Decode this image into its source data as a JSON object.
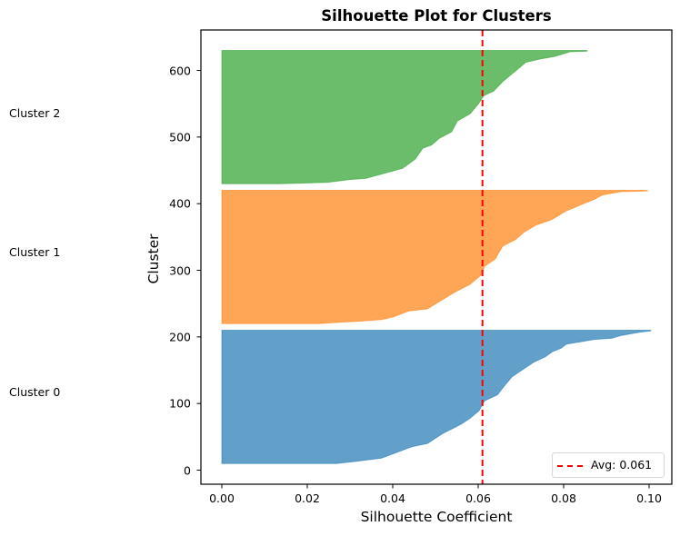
{
  "chart_data": {
    "type": "area",
    "subtype": "silhouette",
    "title": "Silhouette Plot for Clusters",
    "xlabel": "Silhouette Coefficient",
    "ylabel": "Cluster",
    "xlim": [
      -0.005,
      0.1055
    ],
    "ylim": [
      -21,
      660
    ],
    "x_ticks": [
      0.0,
      0.02,
      0.04,
      0.06,
      0.08,
      0.1
    ],
    "x_tick_labels": [
      "0.00",
      "0.02",
      "0.04",
      "0.06",
      "0.08",
      "0.10"
    ],
    "y_ticks": [
      0,
      100,
      200,
      300,
      400,
      500,
      600
    ],
    "y_tick_labels": [
      "0",
      "100",
      "200",
      "300",
      "400",
      "500",
      "600"
    ],
    "grid": false,
    "average_line": {
      "value": 0.061,
      "label": "Avg: 0.061",
      "color": "#ff0000",
      "style": "dashed"
    },
    "legend": {
      "position": "lower right",
      "entries": [
        "Avg: 0.061"
      ]
    },
    "series": [
      {
        "name": "Cluster 0",
        "color": "#1f77b4",
        "y_range": [
          10,
          210
        ],
        "profile": [
          [
            10,
            0.0
          ],
          [
            10,
            0.0268
          ],
          [
            13,
            0.0311
          ],
          [
            18,
            0.0374
          ],
          [
            27,
            0.0411
          ],
          [
            35,
            0.0445
          ],
          [
            40,
            0.0481
          ],
          [
            55,
            0.0517
          ],
          [
            69,
            0.056
          ],
          [
            78,
            0.0581
          ],
          [
            89,
            0.0602
          ],
          [
            104,
            0.0615
          ],
          [
            113,
            0.0645
          ],
          [
            123,
            0.0657
          ],
          [
            140,
            0.0679
          ],
          [
            153,
            0.0709
          ],
          [
            162,
            0.073
          ],
          [
            170,
            0.0757
          ],
          [
            178,
            0.0774
          ],
          [
            183,
            0.0794
          ],
          [
            189,
            0.0806
          ],
          [
            196,
            0.087
          ],
          [
            198,
            0.0913
          ],
          [
            202,
            0.0934
          ],
          [
            207,
            0.0977
          ],
          [
            209,
            0.1004
          ],
          [
            210,
            0.1004
          ]
        ]
      },
      {
        "name": "Cluster 1",
        "color": "#ff7f0e",
        "y_range": [
          220,
          420
        ],
        "profile": [
          [
            220,
            0.0
          ],
          [
            220,
            0.0226
          ],
          [
            224,
            0.0332
          ],
          [
            226,
            0.0374
          ],
          [
            230,
            0.0402
          ],
          [
            239,
            0.0438
          ],
          [
            242,
            0.0481
          ],
          [
            253,
            0.0509
          ],
          [
            267,
            0.0545
          ],
          [
            279,
            0.0581
          ],
          [
            294,
            0.0609
          ],
          [
            306,
            0.0615
          ],
          [
            317,
            0.064
          ],
          [
            336,
            0.0657
          ],
          [
            346,
            0.0687
          ],
          [
            358,
            0.0709
          ],
          [
            368,
            0.0736
          ],
          [
            376,
            0.0772
          ],
          [
            389,
            0.0806
          ],
          [
            399,
            0.0843
          ],
          [
            406,
            0.087
          ],
          [
            413,
            0.0891
          ],
          [
            418,
            0.0934
          ],
          [
            419,
            0.0996
          ],
          [
            420,
            0.0996
          ]
        ]
      },
      {
        "name": "Cluster 2",
        "color": "#2ca02c",
        "y_range": [
          430,
          630
        ],
        "profile": [
          [
            430,
            0.0
          ],
          [
            430,
            0.0134
          ],
          [
            432,
            0.0247
          ],
          [
            436,
            0.0296
          ],
          [
            438,
            0.0338
          ],
          [
            447,
            0.0389
          ],
          [
            453,
            0.0423
          ],
          [
            467,
            0.0453
          ],
          [
            483,
            0.047
          ],
          [
            488,
            0.0491
          ],
          [
            498,
            0.0509
          ],
          [
            508,
            0.0538
          ],
          [
            524,
            0.0551
          ],
          [
            535,
            0.0581
          ],
          [
            551,
            0.0602
          ],
          [
            562,
            0.0613
          ],
          [
            569,
            0.0636
          ],
          [
            583,
            0.0657
          ],
          [
            599,
            0.0687
          ],
          [
            612,
            0.0711
          ],
          [
            617,
            0.0743
          ],
          [
            621,
            0.0779
          ],
          [
            628,
            0.0815
          ],
          [
            629,
            0.0855
          ],
          [
            630,
            0.0855
          ]
        ]
      }
    ],
    "side_labels": [
      "Cluster 2",
      "Cluster 1",
      "Cluster 0"
    ]
  },
  "labels": {
    "title": "Silhouette Plot for Clusters",
    "xlabel": "Silhouette Coefficient",
    "ylabel": "Cluster",
    "cluster_2": "Cluster 2",
    "cluster_1": "Cluster 1",
    "cluster_0": "Cluster 0",
    "legend_avg": "Avg: 0.061"
  }
}
